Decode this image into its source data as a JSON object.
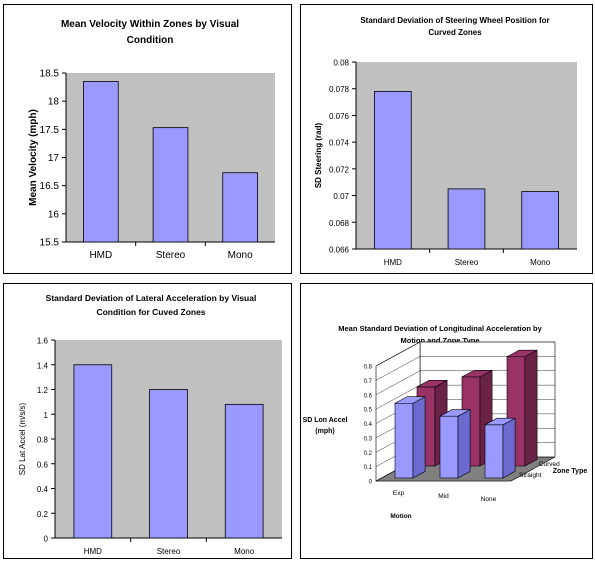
{
  "colors": {
    "bar": "#9999ff",
    "bar_side": "#6a6ad0",
    "bar2": "#993366",
    "bar2_side": "#6b2247",
    "plot_bg": "#c0c0c0",
    "floor": "#808080"
  },
  "chart_data": [
    {
      "type": "bar",
      "title_lines": [
        "Mean Velocity Within Zones by Visual",
        "Condition"
      ],
      "ylabel": "Mean Velocity (mph)",
      "xlabel": "",
      "categories": [
        "HMD",
        "Stereo",
        "Mono"
      ],
      "values": [
        18.35,
        17.53,
        16.73
      ],
      "ylim": [
        15.5,
        18.5
      ],
      "yticks": [
        "15.5",
        "16",
        "16.5",
        "17",
        "17.5",
        "18",
        "18.5"
      ],
      "grid": false
    },
    {
      "type": "bar",
      "title_lines": [
        "Standard Deviation of Steering Wheel Position for",
        "Curved Zones"
      ],
      "ylabel": "SD Steering (rad)",
      "xlabel": "",
      "categories": [
        "HMD",
        "Stereo",
        "Mono"
      ],
      "values": [
        0.0778,
        0.0705,
        0.0703
      ],
      "ylim": [
        0.066,
        0.08
      ],
      "yticks": [
        "0.066",
        "0.068",
        "0.07",
        "0.072",
        "0.074",
        "0.076",
        "0.078",
        "0.08"
      ],
      "grid": false
    },
    {
      "type": "bar",
      "title_lines": [
        "Standard Deviation of Lateral Acceleration by Visual",
        "Condition for Cuved Zones"
      ],
      "ylabel": "SD Lat Accel (m/s/s)",
      "xlabel": "",
      "categories": [
        "HMD",
        "Stereo",
        "Mono"
      ],
      "values": [
        1.4,
        1.2,
        1.08
      ],
      "ylim": [
        0,
        1.6
      ],
      "yticks": [
        "0",
        "0.2",
        "0.4",
        "0.6",
        "0.8",
        "1",
        "1.2",
        "1.4",
        "1.6"
      ],
      "grid": false
    },
    {
      "type": "bar",
      "subtype": "3d-column",
      "title_lines": [
        "Mean Standard Deviation of Longitudinal Acceleration by",
        "Motion and Zone Type"
      ],
      "ylabel_lines": [
        "SD Lon Accel",
        "(mph)"
      ],
      "xlabel": "Motion",
      "zlabel": "Zone Type",
      "categories": [
        "Exp",
        "Mid",
        "None"
      ],
      "series": [
        {
          "name": "Straight",
          "values": [
            0.52,
            0.43,
            0.37
          ]
        },
        {
          "name": "Curved",
          "values": [
            0.55,
            0.62,
            0.76
          ]
        }
      ],
      "ylim": [
        0,
        0.8
      ],
      "yticks": [
        "0",
        "0.1",
        "0.2",
        "0.3",
        "0.4",
        "0.5",
        "0.6",
        "0.7",
        "0.8"
      ],
      "grid": true
    }
  ]
}
